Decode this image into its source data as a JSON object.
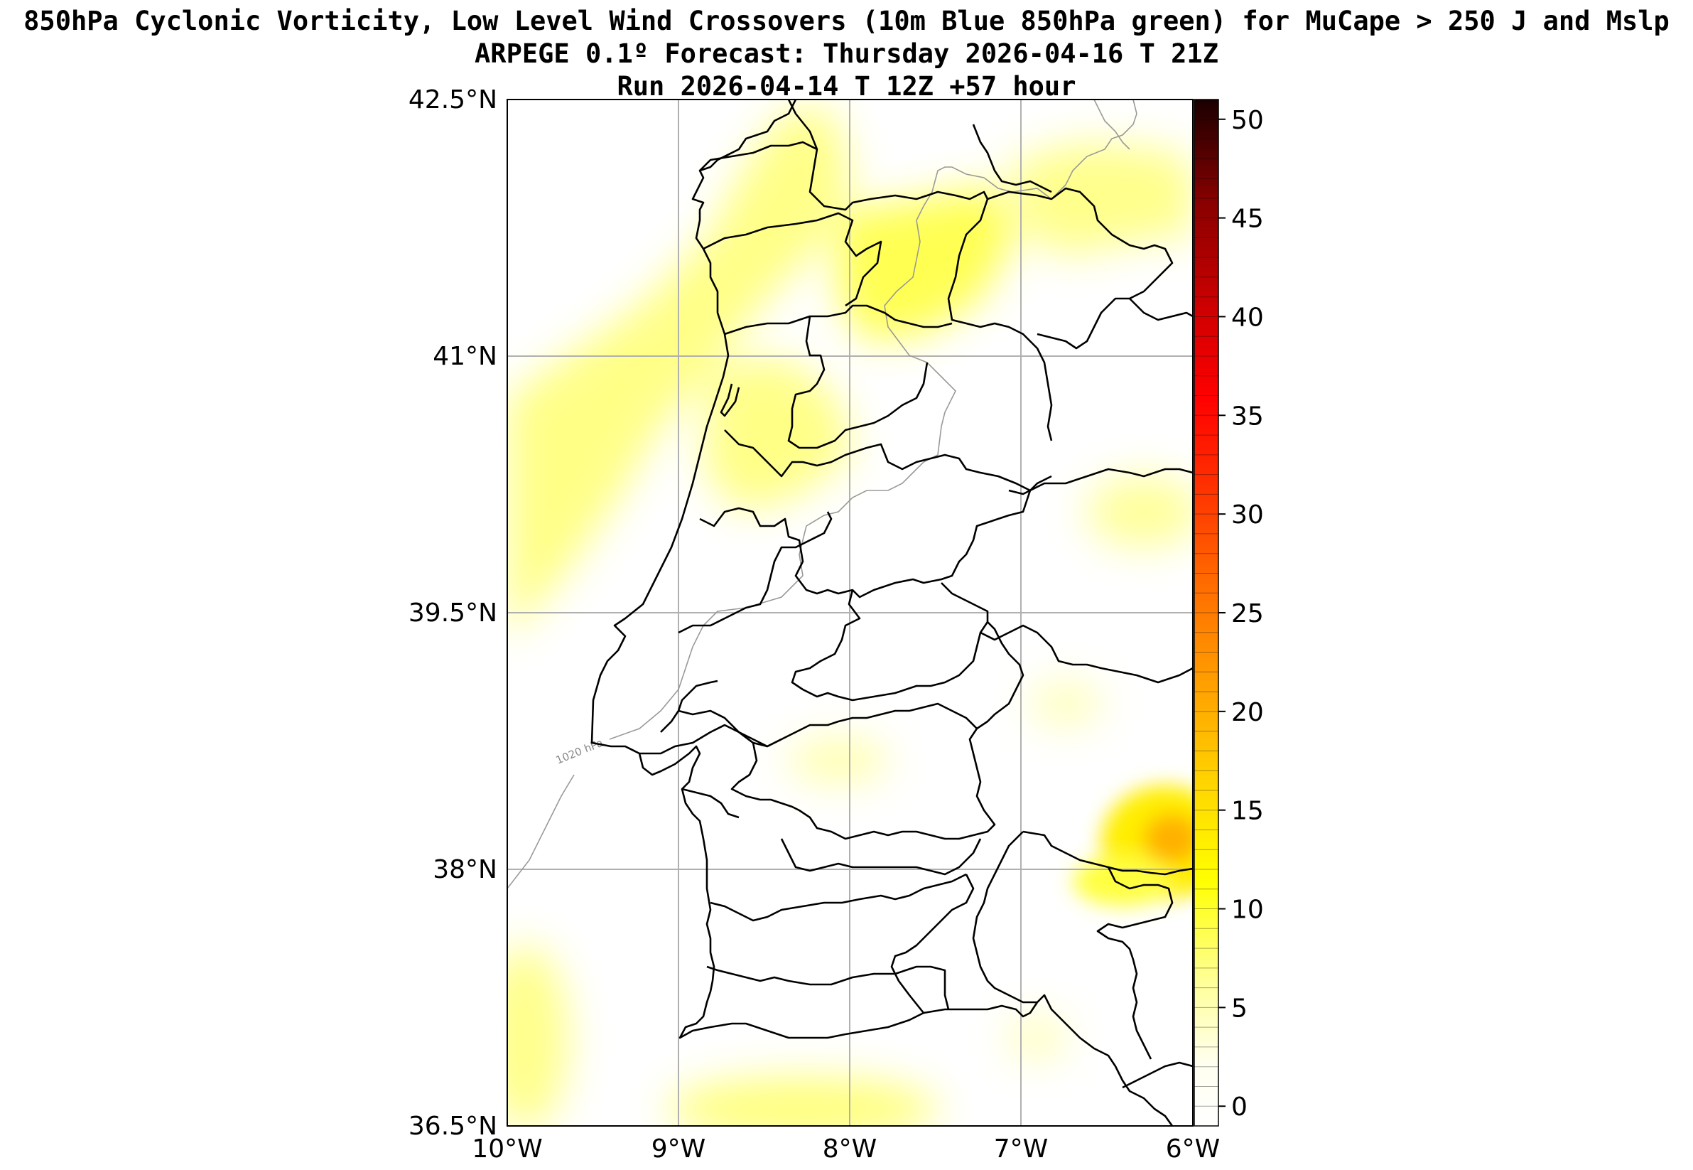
{
  "title": {
    "line1": "850hPa Cyclonic Vorticity, Low Level Wind Crossovers (10m Blue 850hPa green) for MuCape > 250 J and Mslp",
    "line2": "ARPEGE 0.1º Forecast: Thursday 2026-04-16 T 21Z",
    "line3": "Run 2026-04-14 T 12Z +57 hour"
  },
  "map": {
    "lat_range": [
      36.5,
      42.5
    ],
    "lon_range": [
      -10,
      -6
    ],
    "lat_ticks": [
      "42.5°N",
      "41°N",
      "39.5°N",
      "38°N",
      "36.5°N"
    ],
    "lon_ticks": [
      "10°W",
      "9°W",
      "8°W",
      "7°W",
      "6°W"
    ],
    "grid": true,
    "isobar_label": "1020 hPa"
  },
  "colorbar": {
    "ticks": [
      "0",
      "5",
      "10",
      "15",
      "20",
      "25",
      "30",
      "35",
      "40",
      "45",
      "50"
    ],
    "range": [
      -1,
      51
    ],
    "colors": [
      "#ffffff",
      "#ffff99",
      "#ffff00",
      "#ffd700",
      "#ffa500",
      "#ff7000",
      "#ff3300",
      "#ff0000",
      "#cc0000",
      "#880000",
      "#2a0000"
    ]
  }
}
